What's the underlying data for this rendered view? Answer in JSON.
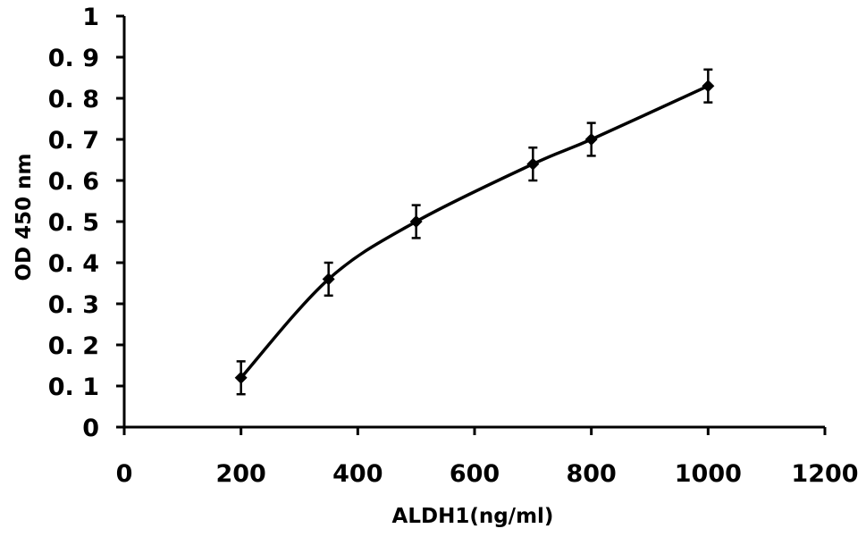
{
  "chart_data": {
    "type": "line",
    "title": "",
    "xlabel": "ALDH1(ng/ml)",
    "ylabel": "OD 450 nm",
    "xlim": [
      0,
      1200
    ],
    "ylim": [
      0,
      1
    ],
    "x_ticks": [
      0,
      200,
      400,
      600,
      800,
      1000,
      1200
    ],
    "x_tick_labels": [
      "0",
      "200",
      "400",
      "600",
      "800",
      "1000",
      "1200"
    ],
    "y_ticks": [
      0,
      0.1,
      0.2,
      0.3,
      0.4,
      0.5,
      0.6,
      0.7,
      0.8,
      0.9,
      1
    ],
    "y_tick_labels": [
      "0",
      "0. 1",
      "0. 2",
      "0. 3",
      "0. 4",
      "0. 5",
      "0. 6",
      "0. 7",
      "0. 8",
      "0. 9",
      "1"
    ],
    "grid": false,
    "marker": "diamond",
    "line_style": "smooth",
    "color": "#000000",
    "series": [
      {
        "x": [
          200,
          350,
          500,
          700,
          800,
          1000
        ],
        "y": [
          0.12,
          0.36,
          0.5,
          0.64,
          0.7,
          0.83
        ],
        "error": [
          0.04,
          0.04,
          0.04,
          0.04,
          0.04,
          0.04
        ]
      }
    ]
  }
}
